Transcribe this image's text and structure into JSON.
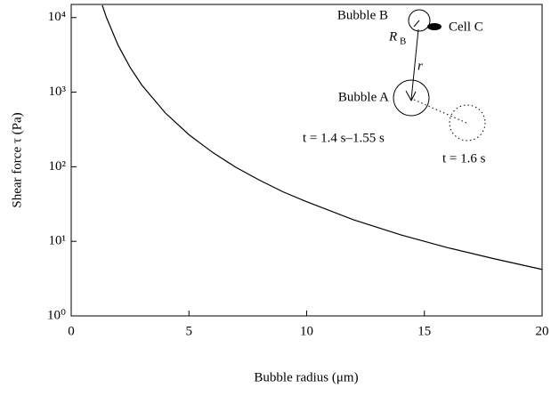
{
  "chart_data": {
    "type": "line",
    "x_label": "Bubble radius (μm)",
    "y_label": "Shear force τ (Pa)",
    "x": [
      1.32,
      1.5,
      2,
      2.5,
      3,
      4,
      5,
      6,
      7,
      8,
      9,
      10,
      12,
      14,
      16,
      18,
      20
    ],
    "values": [
      14600,
      9956,
      4200,
      2150,
      1244,
      525,
      269,
      156,
      98,
      66,
      46,
      34,
      19.4,
      12.2,
      8.2,
      5.8,
      4.2
    ],
    "color": "#000000",
    "xlim": [
      0,
      20
    ],
    "xticks": [
      0,
      5,
      10,
      15,
      20
    ],
    "ylim": [
      1,
      15000
    ],
    "log_y": true,
    "yticks": [
      {
        "value": 1,
        "label": "10⁰"
      },
      {
        "value": 10,
        "label": "10¹"
      },
      {
        "value": 100,
        "label": "10²"
      },
      {
        "value": 1000,
        "label": "10³"
      },
      {
        "value": 10000,
        "label": "10⁴"
      }
    ],
    "annotations": [
      "Bubble B",
      "R",
      "B",
      "Cell C",
      "r",
      "Bubble A",
      "t = 1.4 s–1.55 s",
      "t = 1.6 s"
    ]
  }
}
